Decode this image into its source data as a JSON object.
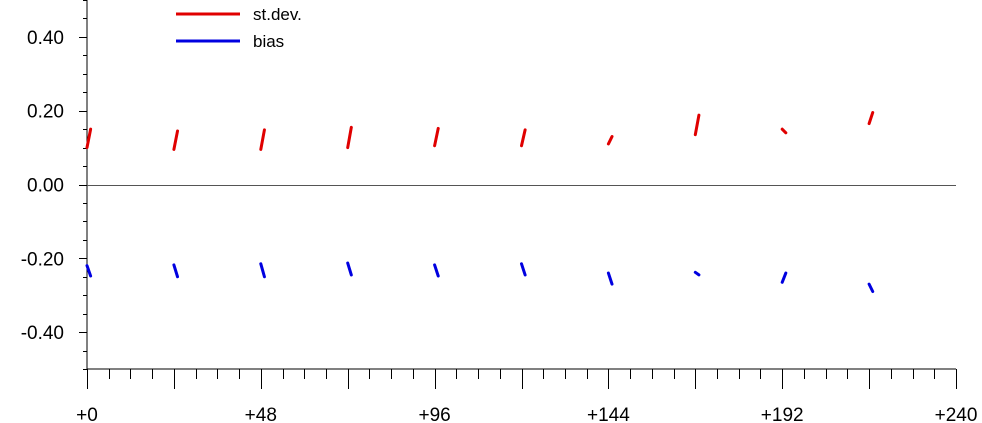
{
  "chart_data": {
    "type": "line",
    "title": "",
    "xlabel": "",
    "ylabel": "",
    "xlim": [
      0,
      240
    ],
    "ylim": [
      -0.5,
      0.5
    ],
    "x_ticks": [
      0,
      48,
      96,
      144,
      192,
      240
    ],
    "x_tick_labels": [
      "+0",
      "+48",
      "+96",
      "+144",
      "+192",
      "+240"
    ],
    "y_ticks": [
      -0.4,
      -0.2,
      0.0,
      0.2,
      0.4
    ],
    "y_tick_labels": [
      "-0.40",
      "-0.20",
      "0.00",
      "0.20",
      "0.40"
    ],
    "zero_line": true,
    "grid": false,
    "legend_position": "top-left",
    "series": [
      {
        "name": "st.dev.",
        "color": "#e00000",
        "segments": [
          {
            "x": [
              0,
              1
            ],
            "y": [
              0.1,
              0.15
            ]
          },
          {
            "x": [
              24,
              25
            ],
            "y": [
              0.095,
              0.145
            ]
          },
          {
            "x": [
              48,
              49
            ],
            "y": [
              0.095,
              0.148
            ]
          },
          {
            "x": [
              72,
              73
            ],
            "y": [
              0.1,
              0.155
            ]
          },
          {
            "x": [
              96,
              97
            ],
            "y": [
              0.105,
              0.152
            ]
          },
          {
            "x": [
              120,
              121
            ],
            "y": [
              0.105,
              0.148
            ]
          },
          {
            "x": [
              144,
              145
            ],
            "y": [
              0.11,
              0.13
            ]
          },
          {
            "x": [
              168,
              169
            ],
            "y": [
              0.135,
              0.188
            ]
          },
          {
            "x": [
              192,
              193
            ],
            "y": [
              0.15,
              0.14
            ]
          },
          {
            "x": [
              216,
              217
            ],
            "y": [
              0.165,
              0.195
            ]
          }
        ]
      },
      {
        "name": "bias",
        "color": "#0000e0",
        "segments": [
          {
            "x": [
              0,
              1
            ],
            "y": [
              -0.22,
              -0.248
            ]
          },
          {
            "x": [
              24,
              25
            ],
            "y": [
              -0.218,
              -0.25
            ]
          },
          {
            "x": [
              48,
              49
            ],
            "y": [
              -0.215,
              -0.25
            ]
          },
          {
            "x": [
              72,
              73
            ],
            "y": [
              -0.213,
              -0.245
            ]
          },
          {
            "x": [
              96,
              97
            ],
            "y": [
              -0.218,
              -0.248
            ]
          },
          {
            "x": [
              120,
              121
            ],
            "y": [
              -0.215,
              -0.245
            ]
          },
          {
            "x": [
              144,
              145
            ],
            "y": [
              -0.24,
              -0.27
            ]
          },
          {
            "x": [
              168,
              169
            ],
            "y": [
              -0.238,
              -0.245
            ]
          },
          {
            "x": [
              192,
              193
            ],
            "y": [
              -0.265,
              -0.24
            ]
          },
          {
            "x": [
              216,
              217
            ],
            "y": [
              -0.27,
              -0.29
            ]
          }
        ]
      }
    ]
  }
}
